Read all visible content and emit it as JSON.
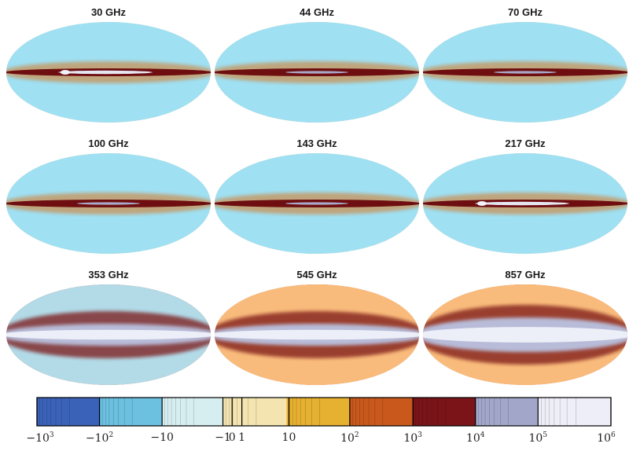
{
  "maps": [
    {
      "title": "30 GHz",
      "palette": "cmb",
      "band": "thin-bright"
    },
    {
      "title": "44 GHz",
      "palette": "cmb",
      "band": "thin"
    },
    {
      "title": "70 GHz",
      "palette": "cmb",
      "band": "thin"
    },
    {
      "title": "100 GHz",
      "palette": "cmb",
      "band": "thin"
    },
    {
      "title": "143 GHz",
      "palette": "cmb",
      "band": "thin"
    },
    {
      "title": "217 GHz",
      "palette": "cmb",
      "band": "thin-bright"
    },
    {
      "title": "353 GHz",
      "palette": "dust-light",
      "band": "wide"
    },
    {
      "title": "545 GHz",
      "palette": "dust",
      "band": "wide"
    },
    {
      "title": "857 GHz",
      "palette": "dust",
      "band": "wider"
    }
  ],
  "colorbar": {
    "segments": [
      {
        "color": "#3a62b8"
      },
      {
        "color": "#6cc0e0"
      },
      {
        "color": "#d7eef0"
      },
      {
        "color": "#f4e4b0"
      },
      {
        "color": "#e6b030"
      },
      {
        "color": "#c8581c"
      },
      {
        "color": "#7a1418"
      },
      {
        "color": "#a2a6c8"
      },
      {
        "color": "#eeeef8"
      }
    ],
    "ticks": [
      {
        "base": "−10",
        "exp": "3"
      },
      {
        "base": "−10",
        "exp": "2"
      },
      {
        "base": "−10",
        "exp": ""
      },
      {
        "base": "−1",
        "exp": ""
      },
      {
        "base": "0",
        "exp": ""
      },
      {
        "base": "1",
        "exp": ""
      },
      {
        "base": "10",
        "exp": ""
      },
      {
        "base": "10",
        "exp": "2"
      },
      {
        "base": "10",
        "exp": "3"
      },
      {
        "base": "10",
        "exp": "4"
      },
      {
        "base": "10",
        "exp": "5"
      },
      {
        "base": "10",
        "exp": "6"
      }
    ]
  }
}
